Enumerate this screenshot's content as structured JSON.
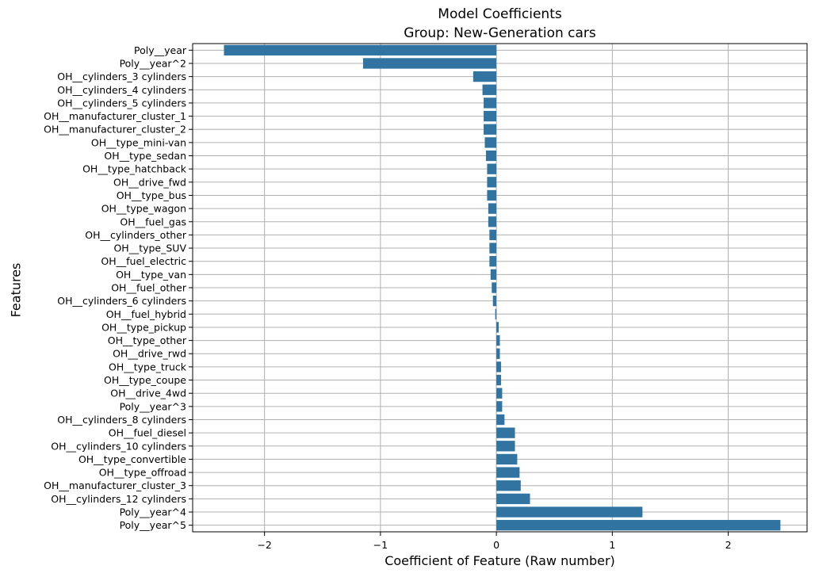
{
  "chart_data": {
    "type": "bar",
    "orientation": "horizontal",
    "title": "Model Coefficients",
    "subtitle": "Group: New-Generation cars",
    "xlabel": "Coefficient of Feature (Raw number)",
    "ylabel": "Features",
    "xlim": [
      -2.62,
      2.68
    ],
    "xticks": [
      -2,
      -1,
      0,
      1,
      2
    ],
    "xtick_labels": [
      "−2",
      "−1",
      "0",
      "1",
      "2"
    ],
    "grid": true,
    "bar_color": "#3274a1",
    "grid_color": "#b0b0b0",
    "categories": [
      "Poly__year",
      "Poly__year^2",
      "OH__cylinders_3 cylinders",
      "OH__cylinders_4 cylinders",
      "OH__cylinders_5 cylinders",
      "OH__manufacturer_cluster_1",
      "OH__manufacturer_cluster_2",
      "OH__type_mini-van",
      "OH__type_sedan",
      "OH__type_hatchback",
      "OH__drive_fwd",
      "OH__type_bus",
      "OH__type_wagon",
      "OH__fuel_gas",
      "OH__cylinders_other",
      "OH__type_SUV",
      "OH__fuel_electric",
      "OH__type_van",
      "OH__fuel_other",
      "OH__cylinders_6 cylinders",
      "OH__fuel_hybrid",
      "OH__type_pickup",
      "OH__type_other",
      "OH__drive_rwd",
      "OH__type_truck",
      "OH__type_coupe",
      "OH__drive_4wd",
      "Poly__year^3",
      "OH__cylinders_8 cylinders",
      "OH__fuel_diesel",
      "OH__cylinders_10 cylinders",
      "OH__type_convertible",
      "OH__type_offroad",
      "OH__manufacturer_cluster_3",
      "OH__cylinders_12 cylinders",
      "Poly__year^4",
      "Poly__year^5"
    ],
    "values": [
      -2.35,
      -1.15,
      -0.2,
      -0.12,
      -0.11,
      -0.11,
      -0.11,
      -0.1,
      -0.09,
      -0.08,
      -0.08,
      -0.08,
      -0.07,
      -0.07,
      -0.06,
      -0.06,
      -0.06,
      -0.05,
      -0.04,
      -0.03,
      -0.01,
      0.02,
      0.03,
      0.03,
      0.04,
      0.04,
      0.05,
      0.05,
      0.07,
      0.16,
      0.16,
      0.18,
      0.2,
      0.21,
      0.29,
      1.26,
      2.45
    ]
  }
}
